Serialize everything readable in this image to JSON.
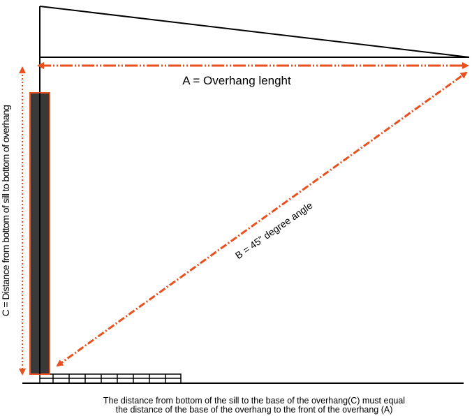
{
  "colors": {
    "line": "#000000",
    "accent": "#e8501e",
    "post": "#3a3a3a"
  },
  "labels": {
    "a": "A = Overhang lenght",
    "b": "B = 45” degree angle",
    "c": "C = Distance from bottom of sill to bottom of overhang"
  },
  "caption": {
    "line1": "The distance from bottom of the sill to the base of the overhang(C) must equal",
    "line2": "the distance of the base of the overhang to the front of the overhang (A)"
  }
}
